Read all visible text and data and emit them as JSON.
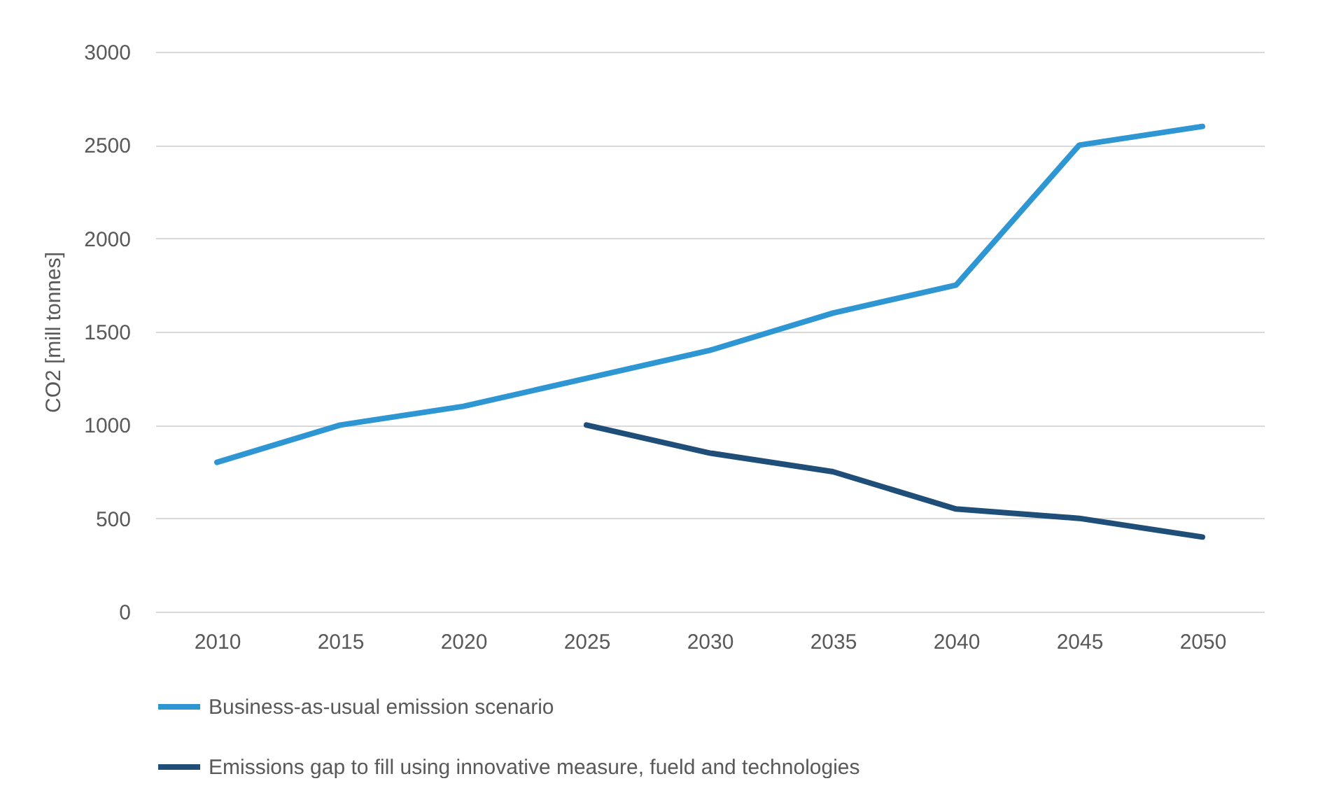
{
  "chart_data": {
    "type": "line",
    "ylabel": "CO2 [mill tonnes]",
    "categories": [
      "2010",
      "2015",
      "2020",
      "2025",
      "2030",
      "2035",
      "2040",
      "2045",
      "2050"
    ],
    "series": [
      {
        "name": "Business-as-usual emission scenario",
        "color": "#2e96d3",
        "values": [
          800,
          1000,
          1100,
          1250,
          1400,
          1600,
          1750,
          2500,
          2600
        ]
      },
      {
        "name": "Emissions gap to fill using innovative measure, fueld and technologies",
        "color": "#1f4e79",
        "values": [
          null,
          null,
          null,
          1000,
          850,
          750,
          550,
          500,
          400
        ]
      }
    ],
    "ylim": [
      0,
      3000
    ],
    "yticks": [
      0,
      500,
      1000,
      1500,
      2000,
      2500,
      3000
    ],
    "grid": "y",
    "legend": "bottom",
    "line_style": "solid",
    "marker": "none"
  }
}
